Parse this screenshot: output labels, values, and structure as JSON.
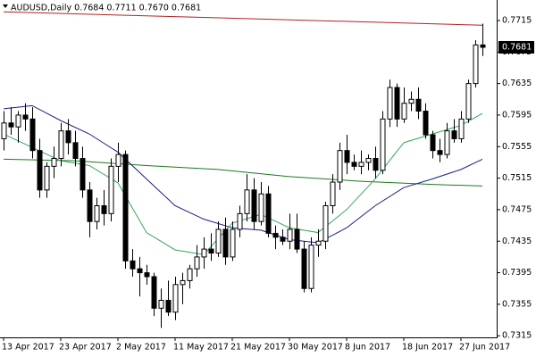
{
  "chart_data": {
    "type": "candlestick",
    "title": "AUDUSD,Daily  0.7684 0.7711 0.7670 0.7681",
    "categories": [
      "13 Apr 2017",
      null,
      null,
      null,
      null,
      null,
      null,
      null,
      "23 Apr 2017",
      null,
      null,
      null,
      null,
      null,
      null,
      null,
      "2 May 2017",
      null,
      null,
      null,
      null,
      null,
      null,
      null,
      "11 May 2017",
      null,
      null,
      null,
      null,
      null,
      null,
      null,
      "21 May 2017",
      null,
      null,
      null,
      null,
      null,
      null,
      null,
      "30 May 2017",
      null,
      null,
      null,
      null,
      null,
      null,
      null,
      "8 Jun 2017",
      null,
      null,
      null,
      null,
      null,
      null,
      null,
      "18 Jun 2017",
      null,
      null,
      null,
      null,
      null,
      null,
      null,
      "27 Jun 2017",
      null,
      null,
      null
    ],
    "open": [
      0.7565,
      0.7585,
      0.758,
      0.7595,
      0.759,
      0.755,
      0.75,
      0.753,
      0.754,
      0.7575,
      0.756,
      0.754,
      0.75,
      0.746,
      0.748,
      0.747,
      0.753,
      0.7545,
      0.741,
      0.74,
      0.7395,
      0.739,
      0.735,
      0.736,
      0.7345,
      0.738,
      0.7385,
      0.74,
      0.7415,
      0.7425,
      0.742,
      0.745,
      0.7415,
      0.745,
      0.747,
      0.75,
      0.746,
      0.7495,
      0.7445,
      0.744,
      0.7435,
      0.745,
      0.7425,
      0.7375,
      0.743,
      0.7435,
      0.748,
      0.751,
      0.755,
      0.7535,
      0.753,
      0.7535,
      0.754,
      0.7525,
      0.759,
      0.763,
      0.759,
      0.761,
      0.7615,
      0.76,
      0.757,
      0.755,
      0.7545,
      0.7575,
      0.7565,
      0.759,
      0.7635,
      0.7684
    ],
    "high": [
      0.76,
      0.7605,
      0.76,
      0.761,
      0.7605,
      0.7565,
      0.7535,
      0.7555,
      0.7585,
      0.759,
      0.7575,
      0.7555,
      0.751,
      0.749,
      0.75,
      0.754,
      0.756,
      0.755,
      0.7425,
      0.7415,
      0.7405,
      0.7395,
      0.7375,
      0.7385,
      0.739,
      0.7395,
      0.7405,
      0.743,
      0.744,
      0.7445,
      0.746,
      0.7465,
      0.746,
      0.748,
      0.752,
      0.7515,
      0.751,
      0.7505,
      0.7455,
      0.745,
      0.747,
      0.747,
      0.7435,
      0.744,
      0.745,
      0.7485,
      0.752,
      0.756,
      0.757,
      0.7545,
      0.755,
      0.7545,
      0.7555,
      0.76,
      0.764,
      0.7635,
      0.763,
      0.7625,
      0.763,
      0.761,
      0.7575,
      0.7565,
      0.7585,
      0.759,
      0.76,
      0.764,
      0.769,
      0.7711
    ],
    "low": [
      0.755,
      0.757,
      0.756,
      0.7575,
      0.754,
      0.749,
      0.749,
      0.7515,
      0.753,
      0.7545,
      0.753,
      0.749,
      0.744,
      0.745,
      0.7455,
      0.746,
      0.751,
      0.74,
      0.739,
      0.7365,
      0.738,
      0.734,
      0.7325,
      0.734,
      0.7335,
      0.7355,
      0.7375,
      0.739,
      0.74,
      0.741,
      0.7415,
      0.7405,
      0.741,
      0.744,
      0.746,
      0.745,
      0.7455,
      0.744,
      0.7425,
      0.743,
      0.7425,
      0.742,
      0.737,
      0.737,
      0.7415,
      0.7425,
      0.747,
      0.75,
      0.752,
      0.7525,
      0.752,
      0.7525,
      0.7515,
      0.752,
      0.758,
      0.758,
      0.7585,
      0.76,
      0.759,
      0.7565,
      0.754,
      0.7535,
      0.754,
      0.756,
      0.756,
      0.7585,
      0.763,
      0.767
    ],
    "close": [
      0.7585,
      0.758,
      0.7595,
      0.759,
      0.755,
      0.75,
      0.753,
      0.754,
      0.7575,
      0.756,
      0.754,
      0.75,
      0.746,
      0.748,
      0.747,
      0.753,
      0.7545,
      0.741,
      0.74,
      0.7395,
      0.739,
      0.735,
      0.736,
      0.7345,
      0.738,
      0.7385,
      0.74,
      0.7415,
      0.7425,
      0.742,
      0.745,
      0.7415,
      0.745,
      0.747,
      0.75,
      0.746,
      0.7495,
      0.7445,
      0.744,
      0.7435,
      0.745,
      0.7425,
      0.7375,
      0.743,
      0.7435,
      0.748,
      0.751,
      0.755,
      0.7535,
      0.753,
      0.7535,
      0.754,
      0.7525,
      0.759,
      0.763,
      0.759,
      0.761,
      0.7615,
      0.76,
      0.757,
      0.755,
      0.7545,
      0.7575,
      0.7565,
      0.759,
      0.7635,
      0.7684,
      0.7681
    ],
    "overlays": [
      {
        "color": "#b22222",
        "x": [
          0,
          67
        ],
        "values": [
          0.7726,
          0.7709
        ]
      },
      {
        "color": "#1a7a1a",
        "x": [
          0,
          10,
          20,
          30,
          40,
          50,
          60,
          67
        ],
        "values": [
          0.7539,
          0.7537,
          0.7531,
          0.7526,
          0.7517,
          0.7511,
          0.7507,
          0.7505
        ]
      },
      {
        "color": "#1c1c80",
        "x": [
          0,
          4,
          8,
          12,
          16,
          20,
          24,
          28,
          32,
          36,
          40,
          44,
          48,
          52,
          56,
          60,
          64,
          67
        ],
        "values": [
          0.7603,
          0.7607,
          0.7588,
          0.7571,
          0.7548,
          0.7514,
          0.748,
          0.7463,
          0.7452,
          0.7449,
          0.7437,
          0.7433,
          0.7452,
          0.748,
          0.7503,
          0.7514,
          0.7526,
          0.7539
        ]
      },
      {
        "color": "#3aa65a",
        "x": [
          0,
          4,
          8,
          12,
          16,
          20,
          24,
          28,
          32,
          36,
          40,
          44,
          48,
          52,
          56,
          60,
          64,
          67
        ],
        "values": [
          0.7571,
          0.7554,
          0.7537,
          0.7531,
          0.7509,
          0.7446,
          0.7424,
          0.7418,
          0.7458,
          0.7469,
          0.7452,
          0.7446,
          0.7475,
          0.7514,
          0.756,
          0.7571,
          0.7582,
          0.7597
        ]
      }
    ],
    "ylim": [
      0.7313,
      0.7741
    ],
    "yticks": [
      0.7715,
      0.7675,
      0.7635,
      0.7595,
      0.7555,
      0.7515,
      0.7475,
      0.7435,
      0.7395,
      0.7355,
      0.7315
    ]
  }
}
